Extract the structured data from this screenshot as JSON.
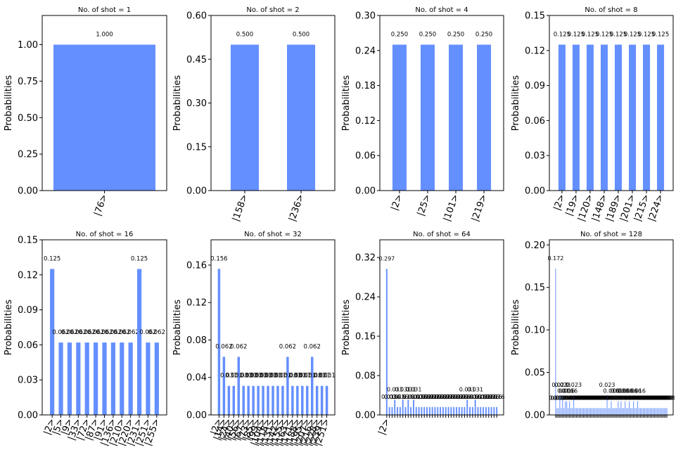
{
  "chart_data": [
    {
      "type": "bar",
      "title": "No. of shot = 1",
      "ylabel": "Probabilities",
      "ylim": [
        0,
        1.2
      ],
      "yticks": [
        "0.00",
        "0.25",
        "0.50",
        "0.75",
        "1.00"
      ],
      "yticks_values": [
        0,
        0.25,
        0.5,
        0.75,
        1.0
      ],
      "categories": [
        "|76>"
      ],
      "values": [
        1.0
      ],
      "data_labels": [
        "1.000"
      ]
    },
    {
      "type": "bar",
      "title": "No. of shot = 2",
      "ylabel": "Probabilities",
      "ylim": [
        0,
        0.6
      ],
      "yticks": [
        "0.00",
        "0.15",
        "0.30",
        "0.45",
        "0.60"
      ],
      "yticks_values": [
        0,
        0.15,
        0.3,
        0.45,
        0.6
      ],
      "categories": [
        "|158>",
        "|236>"
      ],
      "values": [
        0.5,
        0.5
      ],
      "data_labels": [
        "0.500",
        "0.500"
      ]
    },
    {
      "type": "bar",
      "title": "No. of shot = 4",
      "ylabel": "Probabilities",
      "ylim": [
        0,
        0.3
      ],
      "yticks": [
        "0.00",
        "0.06",
        "0.12",
        "0.18",
        "0.24",
        "0.30"
      ],
      "yticks_values": [
        0,
        0.06,
        0.12,
        0.18,
        0.24,
        0.3
      ],
      "categories": [
        "|2>",
        "|25>",
        "|101>",
        "|219>"
      ],
      "values": [
        0.25,
        0.25,
        0.25,
        0.25
      ],
      "data_labels": [
        "0.250",
        "0.250",
        "0.250",
        "0.250"
      ]
    },
    {
      "type": "bar",
      "title": "No. of shot = 8",
      "ylabel": "Probabilities",
      "ylim": [
        0,
        0.15
      ],
      "yticks": [
        "0.00",
        "0.03",
        "0.06",
        "0.09",
        "0.12",
        "0.15"
      ],
      "yticks_values": [
        0,
        0.03,
        0.06,
        0.09,
        0.12,
        0.15
      ],
      "categories": [
        "|2>",
        "|19>",
        "|120>",
        "|148>",
        "|189>",
        "|201>",
        "|215>",
        "|224>"
      ],
      "values": [
        0.125,
        0.125,
        0.125,
        0.125,
        0.125,
        0.125,
        0.125,
        0.125
      ],
      "data_labels": [
        "0.125",
        "0.125",
        "0.125",
        "0.125",
        "0.125",
        "0.125",
        "0.125",
        "0.125"
      ]
    },
    {
      "type": "bar",
      "title": "No. of shot = 16",
      "ylabel": "Probabilities",
      "ylim": [
        0,
        0.15
      ],
      "yticks": [
        "0.00",
        "0.03",
        "0.06",
        "0.09",
        "0.12",
        "0.15"
      ],
      "yticks_values": [
        0,
        0.03,
        0.06,
        0.09,
        0.12,
        0.15
      ],
      "categories": [
        "|2>",
        "|5>",
        "|9>",
        "|33>",
        "|72>",
        "|87>",
        "|91>",
        "|136>",
        "|210>",
        "|220>",
        "|231>",
        "|251>",
        "|255>"
      ],
      "values": [
        0.125,
        0.062,
        0.062,
        0.062,
        0.062,
        0.062,
        0.062,
        0.062,
        0.062,
        0.062,
        0.125,
        0.062,
        0.062
      ],
      "data_labels": [
        "0.125",
        "0.062",
        "0.062",
        "0.062",
        "0.062",
        "0.062",
        "0.062",
        "0.062",
        "0.062",
        "0.062",
        "0.125",
        "0.062",
        "0.062"
      ]
    },
    {
      "type": "bar",
      "title": "No. of shot = 32",
      "ylabel": "Probabilities",
      "ylim": [
        0,
        0.187
      ],
      "yticks": [
        "0.00",
        "0.04",
        "0.08",
        "0.12",
        "0.16"
      ],
      "yticks_values": [
        0,
        0.04,
        0.08,
        0.12,
        0.16
      ],
      "categories": [
        "|2>",
        "|14>",
        "|24>",
        "|40>",
        "|56>",
        "|67>",
        "|73>",
        "|85>",
        "|99>",
        "|104>",
        "|118>",
        "|131>",
        "|142>",
        "|155>",
        "|163>",
        "|171>",
        "|188>",
        "|195>",
        "|207>",
        "|216>",
        "|228>",
        "|239>",
        "|251>"
      ],
      "values": [
        0.156,
        0.062,
        0.031,
        0.031,
        0.062,
        0.031,
        0.031,
        0.031,
        0.031,
        0.031,
        0.031,
        0.031,
        0.031,
        0.031,
        0.062,
        0.031,
        0.031,
        0.031,
        0.031,
        0.062,
        0.031,
        0.031,
        0.031
      ],
      "data_labels": [
        "0.156",
        "0.062",
        "0.031",
        "0.031",
        "0.062",
        "0.031",
        "0.031",
        "0.031",
        "0.031",
        "0.031",
        "0.031",
        "0.031",
        "0.031",
        "0.031",
        "0.062",
        "0.031",
        "0.031",
        "0.031",
        "0.031",
        "0.062",
        "0.031",
        "0.031",
        "0.031"
      ]
    },
    {
      "type": "bar",
      "title": "No. of shot = 64",
      "ylabel": "Probabilities",
      "ylim": [
        0,
        0.356
      ],
      "yticks": [
        "0.00",
        "0.08",
        "0.16",
        "0.24",
        "0.32"
      ],
      "yticks_values": [
        0,
        0.08,
        0.16,
        0.24,
        0.32
      ],
      "categories": [
        "|2>",
        "",
        "",
        "",
        "",
        "",
        "",
        "",
        "",
        "",
        "",
        "",
        "",
        "",
        "",
        "",
        "",
        "",
        "",
        "",
        "",
        "",
        "",
        "",
        "",
        "",
        "",
        "",
        "",
        "",
        "",
        "",
        "",
        "",
        "",
        "",
        "",
        "",
        "",
        "",
        "",
        ""
      ],
      "values": [
        0.297,
        0.016,
        0.016,
        0.031,
        0.016,
        0.016,
        0.031,
        0.016,
        0.031,
        0.016,
        0.031,
        0.016,
        0.016,
        0.016,
        0.016,
        0.016,
        0.016,
        0.016,
        0.016,
        0.016,
        0.016,
        0.016,
        0.016,
        0.016,
        0.016,
        0.016,
        0.016,
        0.016,
        0.016,
        0.016,
        0.031,
        0.016,
        0.016,
        0.031,
        0.016,
        0.016,
        0.016,
        0.016,
        0.016,
        0.016,
        0.016,
        0.016
      ],
      "data_labels": [
        "0.297",
        "0.016",
        "0.016",
        "0.031",
        "0.016",
        "0.016",
        "0.031",
        "0.016",
        "0.031",
        "0.016",
        "0.031",
        "0.016",
        "0.016",
        "0.016",
        "0.016",
        "0.016",
        "0.016",
        "0.016",
        "0.016",
        "0.016",
        "0.016",
        "0.016",
        "0.016",
        "0.016",
        "0.016",
        "0.016",
        "0.016",
        "0.016",
        "0.016",
        "0.016",
        "0.031",
        "0.016",
        "0.016",
        "0.031",
        "0.016",
        "0.016",
        "0.016",
        "0.016",
        "0.016",
        "0.016",
        "0.016",
        "0.016"
      ]
    },
    {
      "type": "bar",
      "title": "No. of shot = 128",
      "ylabel": "Probabilities",
      "ylim": [
        0,
        0.206
      ],
      "yticks": [
        "0.00",
        "0.05",
        "0.10",
        "0.15",
        "0.20"
      ],
      "yticks_values": [
        0,
        0.05,
        0.1,
        0.15,
        0.2
      ],
      "categories": [
        "",
        "",
        "",
        "",
        "",
        "",
        "",
        "",
        "",
        "",
        "",
        "",
        "",
        "",
        "",
        "",
        "",
        "",
        "",
        "",
        "",
        "",
        "",
        "",
        "",
        "",
        "",
        "",
        "",
        "",
        "",
        "",
        "",
        "",
        "",
        "",
        "",
        "",
        "",
        "",
        "",
        "",
        "",
        "",
        "",
        "",
        "",
        "",
        "",
        "",
        "",
        "",
        "",
        "",
        "",
        "",
        "",
        "",
        "",
        "",
        "",
        "",
        "",
        "",
        "",
        "",
        "",
        "",
        "",
        "",
        "",
        "",
        "",
        "",
        "",
        "",
        "",
        "",
        "",
        "",
        ""
      ],
      "values": [
        0.172,
        0.008,
        0.008,
        0.023,
        0.008,
        0.023,
        0.008,
        0.016,
        0.016,
        0.008,
        0.016,
        0.008,
        0.008,
        0.023,
        0.008,
        0.008,
        0.008,
        0.008,
        0.008,
        0.008,
        0.008,
        0.008,
        0.008,
        0.008,
        0.008,
        0.008,
        0.008,
        0.008,
        0.008,
        0.008,
        0.008,
        0.008,
        0.008,
        0.008,
        0.008,
        0.008,
        0.008,
        0.023,
        0.008,
        0.008,
        0.016,
        0.008,
        0.008,
        0.008,
        0.008,
        0.016,
        0.008,
        0.016,
        0.008,
        0.008,
        0.016,
        0.008,
        0.008,
        0.016,
        0.008,
        0.008,
        0.016,
        0.008,
        0.008,
        0.016,
        0.008,
        0.008,
        0.008,
        0.008,
        0.008,
        0.008,
        0.008,
        0.008,
        0.008,
        0.008,
        0.008,
        0.008,
        0.008,
        0.008,
        0.008,
        0.008,
        0.008,
        0.008,
        0.008,
        0.008,
        0.008
      ],
      "data_labels": [
        "0.172",
        "0.008",
        "0.008",
        "0.023",
        "0.008",
        "0.023",
        "0.008",
        "0.016",
        "0.016",
        "0.008",
        "0.016",
        "0.008",
        "0.008",
        "0.023",
        "0.008",
        "0.008",
        "0.008",
        "0.008",
        "0.008",
        "0.008",
        "0.008",
        "0.008",
        "0.008",
        "0.008",
        "0.008",
        "0.008",
        "0.008",
        "0.008",
        "0.008",
        "0.008",
        "0.008",
        "0.008",
        "0.008",
        "0.008",
        "0.008",
        "0.008",
        "0.008",
        "0.023",
        "0.008",
        "0.008",
        "0.016",
        "0.008",
        "0.008",
        "0.008",
        "0.008",
        "0.016",
        "0.008",
        "0.016",
        "0.008",
        "0.008",
        "0.016",
        "0.008",
        "0.008",
        "0.016",
        "0.008",
        "0.008",
        "0.016",
        "0.008",
        "0.008",
        "0.016",
        "0.008",
        "0.008",
        "0.008",
        "0.008",
        "0.008",
        "0.008",
        "0.008",
        "0.008",
        "0.008",
        "0.008",
        "0.008",
        "0.008",
        "0.008",
        "0.008",
        "0.008",
        "0.008",
        "0.008",
        "0.008",
        "0.008",
        "0.008",
        "0.008"
      ]
    }
  ],
  "colors": {
    "bar": "#648fff",
    "axis": "#000000",
    "background": "#ffffff"
  }
}
